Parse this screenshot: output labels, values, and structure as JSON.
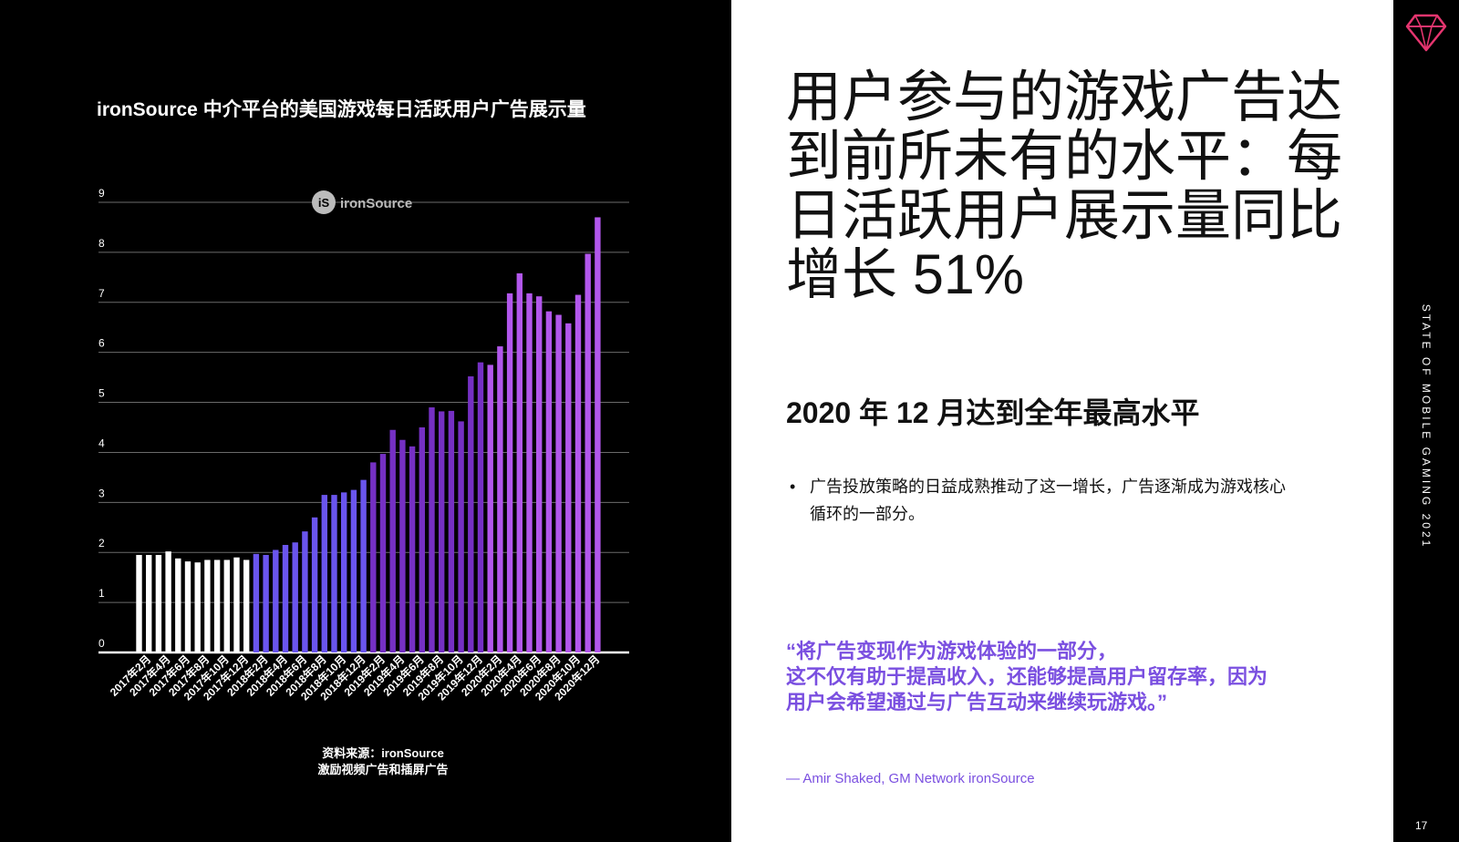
{
  "chart_data": {
    "type": "bar",
    "title": "ironSource 中介平台的美国游戏每日活跃用户广告展示量",
    "watermark": "ironSource",
    "watermark_badge": "iS",
    "xlabel": "",
    "ylabel": "",
    "ylim": [
      0,
      9
    ],
    "yticks": [
      "0",
      "1",
      "2",
      "3",
      "4",
      "5",
      "6",
      "7",
      "8",
      "9"
    ],
    "categories": [
      "2017年1月",
      "2017年2月",
      "2017年3月",
      "2017年4月",
      "2017年5月",
      "2017年6月",
      "2017年7月",
      "2017年8月",
      "2017年9月",
      "2017年10月",
      "2017年11月",
      "2017年12月",
      "2018年1月",
      "2018年2月",
      "2018年3月",
      "2018年4月",
      "2018年5月",
      "2018年6月",
      "2018年7月",
      "2018年8月",
      "2018年9月",
      "2018年10月",
      "2018年11月",
      "2018年12月",
      "2019年1月",
      "2019年2月",
      "2019年3月",
      "2019年4月",
      "2019年5月",
      "2019年6月",
      "2019年7月",
      "2019年8月",
      "2019年9月",
      "2019年10月",
      "2019年11月",
      "2019年12月",
      "2020年1月",
      "2020年2月",
      "2020年3月",
      "2020年4月",
      "2020年5月",
      "2020年6月",
      "2020年7月",
      "2020年8月",
      "2020年9月",
      "2020年10月",
      "2020年11月",
      "2020年12月"
    ],
    "tick_labels": [
      "2017年2月",
      "2017年4月",
      "2017年6月",
      "2017年8月",
      "2017年10月",
      "2017年12月",
      "2018年2月",
      "2018年4月",
      "2018年6月",
      "2018年8月",
      "2018年10月",
      "2018年12月",
      "2019年2月",
      "2019年4月",
      "2019年6月",
      "2019年8月",
      "2019年10月",
      "2019年12月",
      "2020年2月",
      "2020年4月",
      "2020年6月",
      "2020年8月",
      "2020年10月",
      "2020年12月"
    ],
    "values": [
      1.95,
      1.95,
      1.95,
      2.02,
      1.88,
      1.82,
      1.8,
      1.85,
      1.85,
      1.85,
      1.9,
      1.85,
      1.97,
      1.95,
      2.05,
      2.15,
      2.2,
      2.42,
      2.7,
      3.15,
      3.15,
      3.2,
      3.25,
      3.45,
      3.8,
      3.97,
      4.45,
      4.25,
      4.12,
      4.5,
      4.9,
      4.82,
      4.83,
      4.62,
      5.52,
      5.8,
      5.75,
      6.12,
      7.18,
      7.58,
      7.18,
      7.12,
      6.82,
      6.75,
      6.58,
      7.15,
      7.97,
      8.7
    ],
    "year_colors": [
      "#ffffff",
      "#6a55ee",
      "#7530c4",
      "#b257ec"
    ],
    "grid": true
  },
  "source": {
    "line1": "资料来源：ironSource",
    "line2": "激励视频广告和插屏广告"
  },
  "headline": "用户参与的游戏广告达到前所未有的水平：每日活跃用户展示量同比增长 51%",
  "subheading": "2020 年 12 月达到全年最高水平",
  "bullet": {
    "dot": "•",
    "text": "广告投放策略的日益成熟推动了这一增长，广告逐渐成为游戏核心循环的一部分。"
  },
  "quote": {
    "line1": "“将广告变现作为游戏体验的一部分，",
    "line2": "这不仅有助于提高收入，还能够提高用户留存率，因为",
    "line3": "用户会希望通过与广告互动来继续玩游戏。”"
  },
  "attribution": "— Amir Shaked, GM Network ironSource",
  "sidebar": {
    "brand": "STATE OF MOBILE GAMING 2021",
    "page_number": "17",
    "logo_icon": "diamond-logo-icon"
  },
  "colors": {
    "accent": "#7a4fe0",
    "logo": "#e5356f"
  }
}
